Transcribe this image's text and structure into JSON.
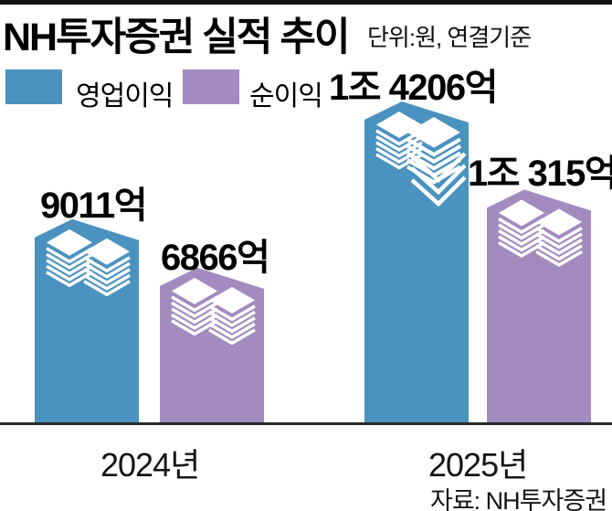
{
  "header": {
    "title": "NH투자증권 실적 추이",
    "unit_note": "단위:원, 연결기준"
  },
  "legend": [
    {
      "label": "영업이익",
      "color": "#4a92c0"
    },
    {
      "label": "순이익",
      "color": "#a28bbe"
    }
  ],
  "source_note": "자료: NH투자증권",
  "chart_data": {
    "type": "bar",
    "title": "NH투자증권 실적 추이",
    "unit_note": "단위:원, 연결기준",
    "source": "자료: NH투자증권",
    "categories": [
      "2024년",
      "2025년"
    ],
    "series": [
      {
        "name": "영업이익",
        "color": "#4a92c0",
        "values": [
          9011,
          14206
        ],
        "labels": [
          "9011억",
          "1조 4206억"
        ]
      },
      {
        "name": "순이익",
        "color": "#a28bbe",
        "values": [
          6866,
          10315
        ],
        "labels": [
          "6866억",
          "1조 315억"
        ]
      }
    ],
    "ylim": [
      0,
      14206
    ],
    "grid": false,
    "legend_position": "top-left",
    "baseline_color": "#2a2a2a",
    "bar_icon": "stacked-banknote-bundles"
  }
}
